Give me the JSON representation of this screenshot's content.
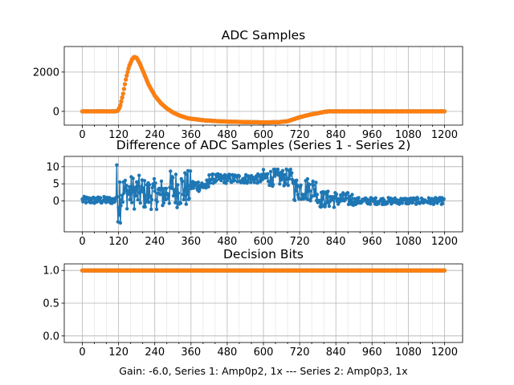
{
  "colors": {
    "series1": "#1f77b4",
    "series2": "#ff7f0e",
    "grid": "#b0b0b0",
    "axis": "#000000",
    "background": "#ffffff"
  },
  "caption": "Gain: -6.0, Series 1: Amp0p2, 1x --- Series 2: Amp0p3, 1x",
  "chart_data": [
    {
      "type": "scatter",
      "title": "ADC Samples",
      "xlabel": "",
      "ylabel": "",
      "xlim": [
        -60,
        1260
      ],
      "ylim": [
        -700,
        3300
      ],
      "x_ticks": [
        0,
        120,
        240,
        360,
        480,
        600,
        720,
        840,
        960,
        1080,
        1200
      ],
      "y_ticks": [
        0,
        2000
      ],
      "grid": true,
      "series": [
        {
          "name": "Series 1",
          "color": "#1f77b4",
          "shape_points": [
            [
              0,
              0
            ],
            [
              110,
              0
            ],
            [
              118,
              40
            ],
            [
              125,
              250
            ],
            [
              135,
              900
            ],
            [
              145,
              1700
            ],
            [
              155,
              2300
            ],
            [
              165,
              2650
            ],
            [
              172,
              2780
            ],
            [
              180,
              2720
            ],
            [
              190,
              2450
            ],
            [
              205,
              1900
            ],
            [
              220,
              1350
            ],
            [
              240,
              800
            ],
            [
              260,
              420
            ],
            [
              280,
              150
            ],
            [
              300,
              -50
            ],
            [
              320,
              -200
            ],
            [
              350,
              -350
            ],
            [
              400,
              -450
            ],
            [
              450,
              -500
            ],
            [
              500,
              -530
            ],
            [
              600,
              -560
            ],
            [
              650,
              -550
            ],
            [
              680,
              -500
            ],
            [
              700,
              -400
            ],
            [
              720,
              -300
            ],
            [
              750,
              -180
            ],
            [
              780,
              -90
            ],
            [
              800,
              -30
            ],
            [
              815,
              0
            ],
            [
              1200,
              0
            ]
          ],
          "point_step": 3
        },
        {
          "name": "Series 2",
          "color": "#ff7f0e",
          "shape_points": [
            [
              0,
              0
            ],
            [
              110,
              0
            ],
            [
              118,
              40
            ],
            [
              125,
              250
            ],
            [
              135,
              900
            ],
            [
              145,
              1700
            ],
            [
              155,
              2300
            ],
            [
              165,
              2650
            ],
            [
              172,
              2780
            ],
            [
              180,
              2720
            ],
            [
              190,
              2450
            ],
            [
              205,
              1900
            ],
            [
              220,
              1350
            ],
            [
              240,
              800
            ],
            [
              260,
              420
            ],
            [
              280,
              150
            ],
            [
              300,
              -50
            ],
            [
              320,
              -200
            ],
            [
              350,
              -350
            ],
            [
              400,
              -450
            ],
            [
              450,
              -500
            ],
            [
              500,
              -530
            ],
            [
              600,
              -560
            ],
            [
              650,
              -550
            ],
            [
              680,
              -500
            ],
            [
              700,
              -400
            ],
            [
              720,
              -300
            ],
            [
              750,
              -180
            ],
            [
              780,
              -90
            ],
            [
              800,
              -30
            ],
            [
              815,
              0
            ],
            [
              1200,
              0
            ]
          ],
          "point_step": 3
        }
      ]
    },
    {
      "type": "line",
      "title": "Difference of ADC Samples (Series 1 - Series 2)",
      "xlabel": "",
      "ylabel": "",
      "xlim": [
        -60,
        1260
      ],
      "ylim": [
        -9,
        13
      ],
      "x_ticks": [
        0,
        120,
        240,
        360,
        480,
        600,
        720,
        840,
        960,
        1080,
        1200
      ],
      "y_ticks": [
        0,
        5,
        10
      ],
      "grid": true,
      "markers": true,
      "series": [
        {
          "name": "Difference",
          "color": "#1f77b4",
          "envelope": [
            {
              "x_range": [
                0,
                110
              ],
              "mean": 0.2,
              "noise": 1.1
            },
            {
              "x_range": [
                110,
                130
              ],
              "mean": 2.5,
              "noise": 9.0
            },
            {
              "x_range": [
                130,
                200
              ],
              "mean": 2.5,
              "noise": 5.0
            },
            {
              "x_range": [
                200,
                280
              ],
              "mean": 2.0,
              "noise": 4.5
            },
            {
              "x_range": [
                280,
                360
              ],
              "mean": 3.5,
              "noise": 5.5
            },
            {
              "x_range": [
                360,
                420
              ],
              "mean": 4.5,
              "noise": 1.8
            },
            {
              "x_range": [
                420,
                600
              ],
              "mean": 6.5,
              "noise": 1.4
            },
            {
              "x_range": [
                600,
                700
              ],
              "mean": 6.8,
              "noise": 2.5
            },
            {
              "x_range": [
                700,
                780
              ],
              "mean": 3.5,
              "noise": 3.5
            },
            {
              "x_range": [
                780,
                840
              ],
              "mean": 0.5,
              "noise": 2.5
            },
            {
              "x_range": [
                840,
                900
              ],
              "mean": 0.5,
              "noise": 2.0
            },
            {
              "x_range": [
                900,
                1200
              ],
              "mean": 0.0,
              "noise": 1.0
            }
          ],
          "point_step": 2
        }
      ]
    },
    {
      "type": "scatter",
      "title": "Decision Bits",
      "xlabel": "Gain: -6.0, Series 1: Amp0p2, 1x --- Series 2: Amp0p3, 1x",
      "ylabel": "",
      "xlim": [
        -60,
        1260
      ],
      "ylim": [
        -0.1,
        1.1
      ],
      "x_ticks": [
        0,
        120,
        240,
        360,
        480,
        600,
        720,
        840,
        960,
        1080,
        1200
      ],
      "y_ticks": [
        0.0,
        0.5,
        1.0
      ],
      "y_tick_labels": [
        "0.0",
        "0.5",
        "1.0"
      ],
      "grid": true,
      "series": [
        {
          "name": "Series 1",
          "color": "#1f77b4",
          "constant": 1.0,
          "x_range": [
            0,
            1200
          ],
          "point_step": 3
        },
        {
          "name": "Series 2",
          "color": "#ff7f0e",
          "constant": 1.0,
          "x_range": [
            0,
            1200
          ],
          "point_step": 3
        }
      ]
    }
  ]
}
